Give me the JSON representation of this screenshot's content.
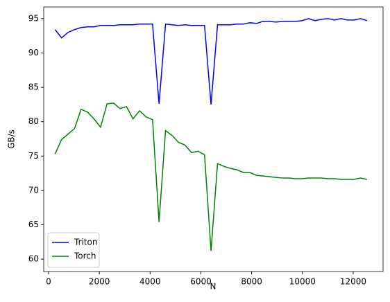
{
  "chart_data": {
    "type": "line",
    "x": [
      256,
      512,
      768,
      1024,
      1280,
      1536,
      1792,
      2048,
      2304,
      2560,
      2816,
      3072,
      3328,
      3584,
      3840,
      4096,
      4352,
      4608,
      4864,
      5120,
      5376,
      5632,
      5888,
      6144,
      6400,
      6656,
      6912,
      7168,
      7424,
      7680,
      7936,
      8192,
      8448,
      8704,
      8960,
      9216,
      9472,
      9728,
      9984,
      10240,
      10496,
      10752,
      11008,
      11264,
      11520,
      11776,
      12032,
      12288,
      12544
    ],
    "series": [
      {
        "name": "Triton",
        "color": "#0000ff",
        "values": [
          93.4,
          92.2,
          93.0,
          93.4,
          93.7,
          93.8,
          93.8,
          94.0,
          94.0,
          94.0,
          94.1,
          94.1,
          94.1,
          94.2,
          94.2,
          94.2,
          82.6,
          94.2,
          94.1,
          94.0,
          94.1,
          94.0,
          94.0,
          94.0,
          82.5,
          94.1,
          94.1,
          94.1,
          94.2,
          94.2,
          94.4,
          94.3,
          94.6,
          94.6,
          94.5,
          94.6,
          94.6,
          94.6,
          94.7,
          95.0,
          94.7,
          94.9,
          95.0,
          94.8,
          95.0,
          94.8,
          94.8,
          95.0,
          94.7
        ]
      },
      {
        "name": "Torch",
        "color": "#008000",
        "values": [
          75.3,
          77.4,
          78.2,
          79.0,
          81.8,
          81.4,
          80.4,
          79.2,
          82.6,
          82.7,
          81.9,
          82.2,
          80.4,
          81.6,
          80.7,
          80.3,
          65.4,
          78.7,
          78.0,
          77.0,
          76.6,
          75.5,
          75.7,
          75.2,
          61.2,
          73.9,
          73.5,
          73.2,
          73.0,
          72.6,
          72.6,
          72.2,
          72.1,
          72.0,
          71.9,
          71.8,
          71.8,
          71.7,
          71.7,
          71.8,
          71.8,
          71.8,
          71.7,
          71.7,
          71.6,
          71.6,
          71.6,
          71.8,
          71.6
        ]
      }
    ],
    "xlabel": "N",
    "ylabel": "GB/s",
    "xlim": [
      -191,
      13177
    ],
    "ylim": [
      58.2,
      96.7
    ],
    "xticks": [
      0,
      2000,
      4000,
      6000,
      8000,
      10000,
      12000
    ],
    "yticks": [
      60,
      65,
      70,
      75,
      80,
      85,
      90,
      95
    ],
    "legend": "lower left",
    "grid": false
  }
}
